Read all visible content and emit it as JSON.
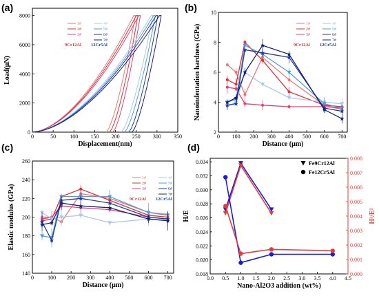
{
  "chart_data": [
    {
      "panel": "(a)",
      "type": "line",
      "xlabel": "Displacement(nm)",
      "ylabel": "Load(μN)",
      "xlim": [
        0,
        350
      ],
      "ylim": [
        0,
        8500
      ],
      "xticks": [
        0,
        50,
        100,
        150,
        200,
        250,
        300,
        350
      ],
      "yticks": [
        0,
        2000,
        4000,
        6000,
        8000
      ],
      "group_labels": [
        "9Cr12Al",
        "12Cr5Al"
      ],
      "series": [
        {
          "name": "1#",
          "color": "#e87878",
          "max_depth": 244,
          "end_depth": 178
        },
        {
          "name": "2#",
          "color": "#e03030",
          "max_depth": 250,
          "end_depth": 186
        },
        {
          "name": "3#",
          "color": "#e0407a",
          "max_depth": 256,
          "end_depth": 194
        },
        {
          "name": "4#",
          "color": "#a8c8ec",
          "max_depth": 286,
          "end_depth": 214
        },
        {
          "name": "5#",
          "color": "#4f9fd6",
          "max_depth": 292,
          "end_depth": 222
        },
        {
          "name": "6#",
          "color": "#1f3a9e",
          "max_depth": 298,
          "end_depth": 232
        },
        {
          "name": "7#",
          "color": "#152078",
          "max_depth": 306,
          "end_depth": 240
        }
      ],
      "peak_load": 8000
    },
    {
      "panel": "(b)",
      "type": "line",
      "xlabel": "Distance (μm)",
      "ylabel": "Nanoindentation hardness (GPa)",
      "xlim": [
        0,
        730
      ],
      "ylim": [
        2,
        10
      ],
      "xticks": [
        0,
        100,
        200,
        300,
        400,
        500,
        600,
        700
      ],
      "yticks": [
        2,
        4,
        6,
        8,
        10
      ],
      "group_labels": [
        "9Cr12Al",
        "12Cr5Al"
      ],
      "x": [
        50,
        100,
        150,
        250,
        400,
        600,
        700
      ],
      "series": [
        {
          "name": "1#",
          "color": "#e87878",
          "values": [
            6.5,
            6.0,
            4.5,
            7.0,
            5.5,
            3.8,
            3.5
          ]
        },
        {
          "name": "2#",
          "color": "#e03030",
          "values": [
            5.5,
            5.2,
            8.0,
            6.8,
            4.7,
            3.8,
            3.7
          ]
        },
        {
          "name": "3#",
          "color": "#e0407a",
          "values": [
            5.0,
            4.9,
            3.9,
            3.8,
            3.7,
            3.7,
            3.6
          ]
        },
        {
          "name": "4#",
          "color": "#a8c8ec",
          "values": [
            3.7,
            4.0,
            6.0,
            5.2,
            4.3,
            4.0,
            3.9
          ]
        },
        {
          "name": "5#",
          "color": "#4f9fd6",
          "values": [
            4.0,
            4.2,
            7.8,
            7.2,
            6.0,
            3.9,
            3.6
          ]
        },
        {
          "name": "6#",
          "color": "#1f3a9e",
          "values": [
            3.8,
            3.9,
            7.5,
            7.3,
            7.0,
            3.6,
            3.4
          ]
        },
        {
          "name": "7#",
          "color": "#152078",
          "values": [
            4.0,
            4.3,
            6.0,
            7.8,
            7.2,
            3.5,
            2.9
          ]
        }
      ]
    },
    {
      "panel": "(c)",
      "type": "line",
      "xlabel": "Distance (μm)",
      "ylabel": "Elastic modulus (GPa)",
      "xlim": [
        0,
        730
      ],
      "ylim": [
        140,
        260
      ],
      "xticks": [
        0,
        100,
        200,
        300,
        400,
        500,
        600,
        700
      ],
      "yticks": [
        140,
        160,
        180,
        200,
        220,
        240,
        260
      ],
      "group_labels": [
        "9Cr12Al",
        "12Cr5Al"
      ],
      "x": [
        50,
        100,
        150,
        250,
        400,
        600,
        700
      ],
      "series": [
        {
          "name": "1#",
          "color": "#e87878",
          "values": [
            200,
            200,
            195,
            225,
            220,
            205,
            203
          ]
        },
        {
          "name": "2#",
          "color": "#e03030",
          "values": [
            196,
            198,
            222,
            230,
            218,
            202,
            200
          ]
        },
        {
          "name": "3#",
          "color": "#e0407a",
          "values": [
            198,
            200,
            212,
            210,
            208,
            200,
            198
          ]
        },
        {
          "name": "4#",
          "color": "#a8c8ec",
          "values": [
            205,
            198,
            200,
            202,
            194,
            198,
            197
          ]
        },
        {
          "name": "5#",
          "color": "#4f9fd6",
          "values": [
            180,
            178,
            222,
            222,
            222,
            205,
            202
          ]
        },
        {
          "name": "6#",
          "color": "#1f3a9e",
          "values": [
            195,
            175,
            218,
            220,
            215,
            200,
            198
          ]
        },
        {
          "name": "7#",
          "color": "#152078",
          "values": [
            192,
            194,
            215,
            212,
            210,
            198,
            196
          ]
        }
      ]
    },
    {
      "panel": "(d)",
      "type": "line",
      "xlabel": "Nano-Al2O3 addition (wt%)",
      "ylabel": "H/E",
      "y2label": "H³/E²",
      "xlim": [
        0,
        4.5
      ],
      "ylim": [
        0.018,
        0.0345
      ],
      "y2lim": [
        0,
        0.008
      ],
      "xticks": [
        0.0,
        0.5,
        1.0,
        1.5,
        2.0,
        2.5,
        3.0,
        3.5,
        4.0,
        4.5
      ],
      "yticks": [
        0.018,
        0.02,
        0.022,
        0.024,
        0.026,
        0.028,
        0.03,
        0.032,
        0.034
      ],
      "y2ticks": [
        0.0,
        0.001,
        0.002,
        0.003,
        0.004,
        0.005,
        0.006,
        0.007,
        0.008
      ],
      "legend": [
        "Fe9Cr12Al",
        "Fe12Cr5Al"
      ],
      "series": [
        {
          "group": "Fe9Cr12Al",
          "metric": "H/E",
          "marker": "triangle",
          "color": "#1c1cd6",
          "x": [
            0.5,
            1.0,
            2.0
          ],
          "values": [
            0.0272,
            0.0338,
            0.0272
          ]
        },
        {
          "group": "Fe9Cr12Al",
          "metric": "H³/E²",
          "marker": "triangle",
          "color": "#e83a3a",
          "x": [
            0.5,
            1.0,
            2.0
          ],
          "values": [
            0.0042,
            0.0075,
            0.0042
          ]
        },
        {
          "group": "Fe12Cr5Al",
          "metric": "H/E",
          "marker": "circle",
          "color": "#1c1cd6",
          "x": [
            0.5,
            1.0,
            2.0,
            4.0
          ],
          "values": [
            0.0318,
            0.0196,
            0.0208,
            0.0208
          ]
        },
        {
          "group": "Fe12Cr5Al",
          "metric": "H³/E²",
          "marker": "circle",
          "color": "#e83a3a",
          "x": [
            0.5,
            1.0,
            2.0,
            4.0
          ],
          "values": [
            0.0047,
            0.0014,
            0.0017,
            0.0016
          ]
        }
      ]
    }
  ]
}
